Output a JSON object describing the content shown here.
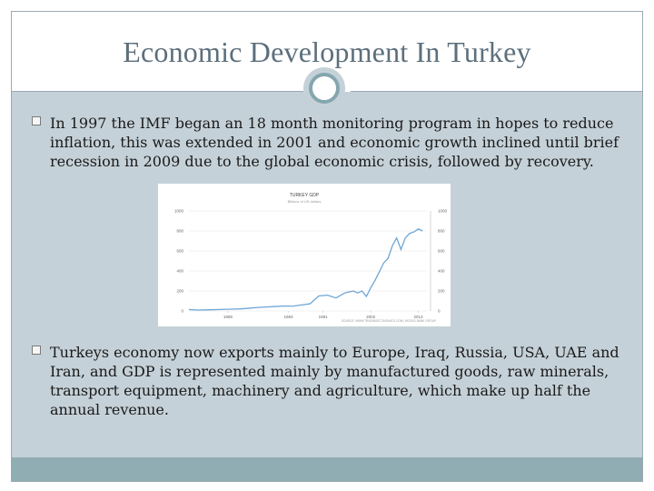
{
  "slide": {
    "title": "Economic Development In Turkey",
    "bullets": [
      "In 1997 the IMF began an 18 month monitoring program in hopes to reduce inflation, this was extended in 2001 and economic growth inclined until brief recession in 2009 due to the global economic crisis, followed by recovery.",
      "Turkeys economy now exports mainly to Europe, Iraq, Russia, USA, UAE and Iran, and GDP is represented mainly by manufactured goods, raw minerals, transport equipment, machinery and agriculture, which make up half the annual revenue."
    ]
  },
  "colors": {
    "slide_bg": "#c5d1d8",
    "title_text": "#5c6f7c",
    "accent_ring": "#84a7af",
    "footer_bar": "#8fadb3",
    "line": "#6fa6d6"
  },
  "chart_data": {
    "type": "line",
    "title": "TURKEY GDP",
    "subtitle": "Billions of US dollars",
    "source": "SOURCE: WWW.TRADINGECONOMICS.COM | WORLD BANK GROUP",
    "x_ticks": [
      "1969",
      "1983",
      "1991",
      "2002",
      "2013"
    ],
    "y_ticks": [
      "0",
      "200",
      "400",
      "600",
      "800",
      "1000"
    ],
    "y_ticks_right": [
      "0",
      "200",
      "400",
      "600",
      "800",
      "1000"
    ],
    "xlim": [
      1960,
      2015
    ],
    "ylim": [
      0,
      1000
    ],
    "grid": true,
    "series": [
      {
        "x": [
          1960,
          1962,
          1964,
          1966,
          1968,
          1970,
          1972,
          1974,
          1976,
          1978,
          1980,
          1982,
          1984,
          1986,
          1988,
          1990,
          1992,
          1994,
          1996,
          1998,
          1999,
          2000,
          2001,
          2002,
          2003,
          2004,
          2005,
          2006,
          2007,
          2008,
          2009,
          2010,
          2011,
          2012,
          2013,
          2014
        ],
        "y": [
          14,
          9,
          11,
          13,
          16,
          18,
          21,
          28,
          35,
          40,
          45,
          50,
          48,
          60,
          72,
          150,
          158,
          130,
          180,
          200,
          180,
          200,
          145,
          230,
          305,
          390,
          480,
          525,
          650,
          730,
          615,
          730,
          775,
          790,
          820,
          800
        ]
      }
    ]
  }
}
